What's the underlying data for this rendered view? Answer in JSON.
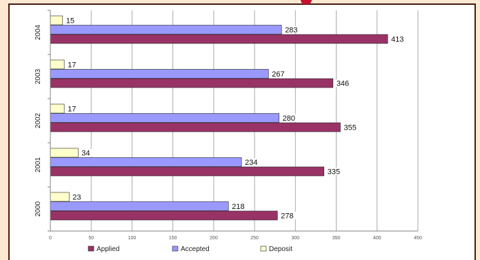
{
  "chart_data": {
    "type": "bar",
    "orientation": "horizontal",
    "title": "",
    "xlabel": "",
    "ylabel": "",
    "categories": [
      "2004",
      "2003",
      "2002",
      "2001",
      "2000"
    ],
    "series": [
      {
        "name": "Deposit",
        "color": "#ffffcc",
        "values": [
          15,
          17,
          17,
          34,
          23
        ]
      },
      {
        "name": "Accepted",
        "color": "#9999ff",
        "values": [
          283,
          267,
          280,
          234,
          218
        ]
      },
      {
        "name": "Applied",
        "color": "#993366",
        "values": [
          413,
          346,
          355,
          335,
          278
        ]
      }
    ],
    "legend_order": [
      "Applied",
      "Accepted",
      "Deposit"
    ],
    "xlim": [
      0,
      450
    ],
    "xticks": [
      0,
      50,
      100,
      150,
      200,
      250,
      300,
      350,
      400,
      450
    ],
    "grid": true,
    "legend_position": "bottom"
  }
}
